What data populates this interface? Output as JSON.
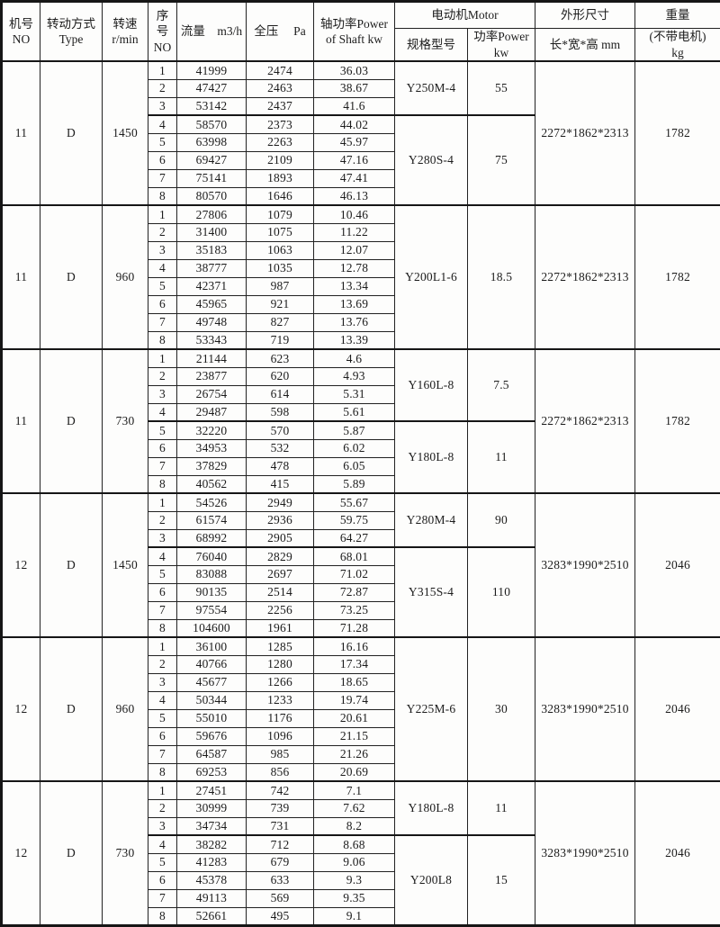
{
  "header": {
    "fan_no": "机号\nNO",
    "drive_type": "转动方式\nType",
    "speed": "转速\nr/min",
    "seq": "序\n号\nNO",
    "flow": "流量　m3/h",
    "pressure": "全压　  Pa",
    "shaft_power": "轴功率Power\nof Shaft  kw",
    "motor_group": "电动机Motor",
    "motor_model": "规格型号",
    "motor_power": "功率Power\nkw",
    "dimensions_group": "外形尺寸",
    "dimensions_sub": "长*宽*高  mm",
    "weight_group": "重量",
    "weight_sub": "(不带电机)\nkg"
  },
  "blocks": [
    {
      "no": "11",
      "type": "D",
      "speed": "1450",
      "rows": [
        {
          "seq": "1",
          "flow": "41999",
          "pressure": "2474",
          "shaft_power": "36.03"
        },
        {
          "seq": "2",
          "flow": "47427",
          "pressure": "2463",
          "shaft_power": "38.67"
        },
        {
          "seq": "3",
          "flow": "53142",
          "pressure": "2437",
          "shaft_power": "41.6"
        },
        {
          "seq": "4",
          "flow": "58570",
          "pressure": "2373",
          "shaft_power": "44.02"
        },
        {
          "seq": "5",
          "flow": "63998",
          "pressure": "2263",
          "shaft_power": "45.97"
        },
        {
          "seq": "6",
          "flow": "69427",
          "pressure": "2109",
          "shaft_power": "47.16"
        },
        {
          "seq": "7",
          "flow": "75141",
          "pressure": "1893",
          "shaft_power": "47.41"
        },
        {
          "seq": "8",
          "flow": "80570",
          "pressure": "1646",
          "shaft_power": "46.13"
        }
      ],
      "motors": [
        {
          "model": "Y250M-4",
          "power": "55",
          "span": 3
        },
        {
          "model": "Y280S-4",
          "power": "75",
          "span": 5
        }
      ],
      "dimensions": "2272*1862*2313",
      "weight": "1782"
    },
    {
      "no": "11",
      "type": "D",
      "speed": "960",
      "rows": [
        {
          "seq": "1",
          "flow": "27806",
          "pressure": "1079",
          "shaft_power": "10.46"
        },
        {
          "seq": "2",
          "flow": "31400",
          "pressure": "1075",
          "shaft_power": "11.22"
        },
        {
          "seq": "3",
          "flow": "35183",
          "pressure": "1063",
          "shaft_power": "12.07"
        },
        {
          "seq": "4",
          "flow": "38777",
          "pressure": "1035",
          "shaft_power": "12.78"
        },
        {
          "seq": "5",
          "flow": "42371",
          "pressure": "987",
          "shaft_power": "13.34"
        },
        {
          "seq": "6",
          "flow": "45965",
          "pressure": "921",
          "shaft_power": "13.69"
        },
        {
          "seq": "7",
          "flow": "49748",
          "pressure": "827",
          "shaft_power": "13.76"
        },
        {
          "seq": "8",
          "flow": "53343",
          "pressure": "719",
          "shaft_power": "13.39"
        }
      ],
      "motors": [
        {
          "model": "Y200L1-6",
          "power": "18.5",
          "span": 8
        }
      ],
      "dimensions": "2272*1862*2313",
      "weight": "1782"
    },
    {
      "no": "11",
      "type": "D",
      "speed": "730",
      "rows": [
        {
          "seq": "1",
          "flow": "21144",
          "pressure": "623",
          "shaft_power": "4.6"
        },
        {
          "seq": "2",
          "flow": "23877",
          "pressure": "620",
          "shaft_power": "4.93"
        },
        {
          "seq": "3",
          "flow": "26754",
          "pressure": "614",
          "shaft_power": "5.31"
        },
        {
          "seq": "4",
          "flow": "29487",
          "pressure": "598",
          "shaft_power": "5.61"
        },
        {
          "seq": "5",
          "flow": "32220",
          "pressure": "570",
          "shaft_power": "5.87"
        },
        {
          "seq": "6",
          "flow": "34953",
          "pressure": "532",
          "shaft_power": "6.02"
        },
        {
          "seq": "7",
          "flow": "37829",
          "pressure": "478",
          "shaft_power": "6.05"
        },
        {
          "seq": "8",
          "flow": "40562",
          "pressure": "415",
          "shaft_power": "5.89"
        }
      ],
      "motors": [
        {
          "model": "Y160L-8",
          "power": "7.5",
          "span": 4
        },
        {
          "model": "Y180L-8",
          "power": "11",
          "span": 4
        }
      ],
      "dimensions": "2272*1862*2313",
      "weight": "1782"
    },
    {
      "no": "12",
      "type": "D",
      "speed": "1450",
      "rows": [
        {
          "seq": "1",
          "flow": "54526",
          "pressure": "2949",
          "shaft_power": "55.67"
        },
        {
          "seq": "2",
          "flow": "61574",
          "pressure": "2936",
          "shaft_power": "59.75"
        },
        {
          "seq": "3",
          "flow": "68992",
          "pressure": "2905",
          "shaft_power": "64.27"
        },
        {
          "seq": "4",
          "flow": "76040",
          "pressure": "2829",
          "shaft_power": "68.01"
        },
        {
          "seq": "5",
          "flow": "83088",
          "pressure": "2697",
          "shaft_power": "71.02"
        },
        {
          "seq": "6",
          "flow": "90135",
          "pressure": "2514",
          "shaft_power": "72.87"
        },
        {
          "seq": "7",
          "flow": "97554",
          "pressure": "2256",
          "shaft_power": "73.25"
        },
        {
          "seq": "8",
          "flow": "104600",
          "pressure": "1961",
          "shaft_power": "71.28"
        }
      ],
      "motors": [
        {
          "model": "Y280M-4",
          "power": "90",
          "span": 3
        },
        {
          "model": "Y315S-4",
          "power": "110",
          "span": 5
        }
      ],
      "dimensions": "3283*1990*2510",
      "weight": "2046"
    },
    {
      "no": "12",
      "type": "D",
      "speed": "960",
      "rows": [
        {
          "seq": "1",
          "flow": "36100",
          "pressure": "1285",
          "shaft_power": "16.16"
        },
        {
          "seq": "2",
          "flow": "40766",
          "pressure": "1280",
          "shaft_power": "17.34"
        },
        {
          "seq": "3",
          "flow": "45677",
          "pressure": "1266",
          "shaft_power": "18.65"
        },
        {
          "seq": "4",
          "flow": "50344",
          "pressure": "1233",
          "shaft_power": "19.74"
        },
        {
          "seq": "5",
          "flow": "55010",
          "pressure": "1176",
          "shaft_power": "20.61"
        },
        {
          "seq": "6",
          "flow": "59676",
          "pressure": "1096",
          "shaft_power": "21.15"
        },
        {
          "seq": "7",
          "flow": "64587",
          "pressure": "985",
          "shaft_power": "21.26"
        },
        {
          "seq": "8",
          "flow": "69253",
          "pressure": "856",
          "shaft_power": "20.69"
        }
      ],
      "motors": [
        {
          "model": "Y225M-6",
          "power": "30",
          "span": 8
        }
      ],
      "dimensions": "3283*1990*2510",
      "weight": "2046"
    },
    {
      "no": "12",
      "type": "D",
      "speed": "730",
      "rows": [
        {
          "seq": "1",
          "flow": "27451",
          "pressure": "742",
          "shaft_power": "7.1"
        },
        {
          "seq": "2",
          "flow": "30999",
          "pressure": "739",
          "shaft_power": "7.62"
        },
        {
          "seq": "3",
          "flow": "34734",
          "pressure": "731",
          "shaft_power": "8.2"
        },
        {
          "seq": "4",
          "flow": "38282",
          "pressure": "712",
          "shaft_power": "8.68"
        },
        {
          "seq": "5",
          "flow": "41283",
          "pressure": "679",
          "shaft_power": "9.06"
        },
        {
          "seq": "6",
          "flow": "45378",
          "pressure": "633",
          "shaft_power": "9.3"
        },
        {
          "seq": "7",
          "flow": "49113",
          "pressure": "569",
          "shaft_power": "9.35"
        },
        {
          "seq": "8",
          "flow": "52661",
          "pressure": "495",
          "shaft_power": "9.1"
        }
      ],
      "motors": [
        {
          "model": "Y180L-8",
          "power": "11",
          "span": 3
        },
        {
          "model": "Y200L8",
          "power": "15",
          "span": 5
        }
      ],
      "dimensions": "3283*1990*2510",
      "weight": "2046"
    }
  ]
}
